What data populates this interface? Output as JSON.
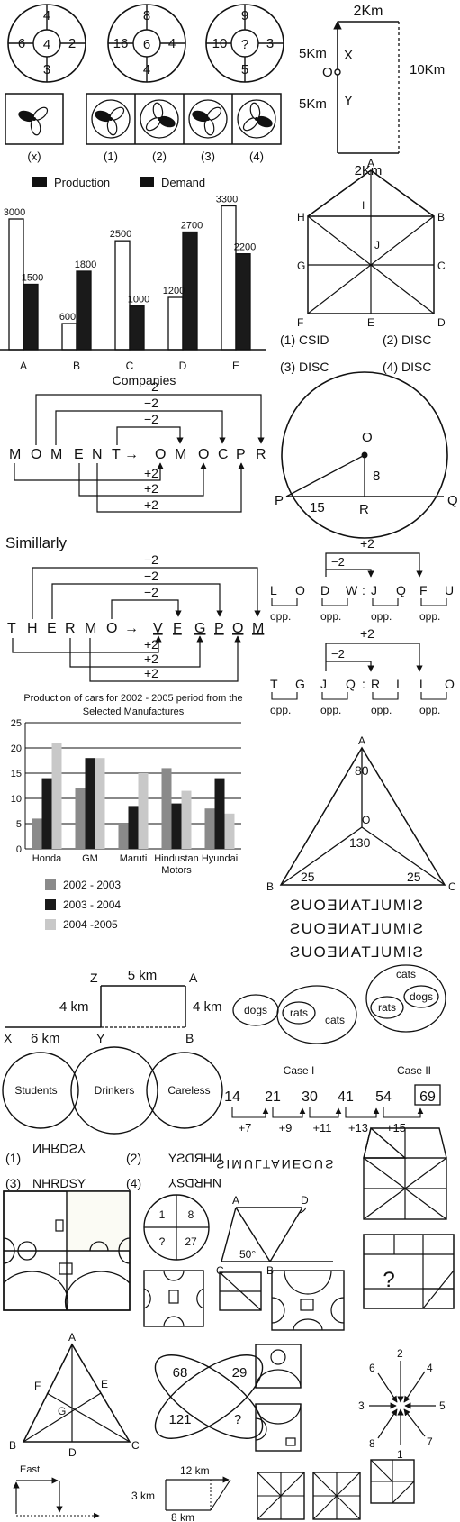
{
  "wheels": [
    {
      "top": "4",
      "left": "6",
      "center": "4",
      "right": "2",
      "bottom": "3"
    },
    {
      "top": "8",
      "left": "16",
      "center": "6",
      "right": "4",
      "bottom": "4"
    },
    {
      "top": "9",
      "left": "10",
      "center": "?",
      "right": "3",
      "bottom": "5"
    }
  ],
  "route1": {
    "top": "2Km",
    "left_upper": "5Km",
    "left_lower": "5Km",
    "origin": "O",
    "x": "X",
    "y": "Y",
    "right": "10Km",
    "bottom": "2Km"
  },
  "fig_labels": {
    "x": "(x)",
    "o1": "(1)",
    "o2": "(2)",
    "o3": "(3)",
    "o4": "(4)"
  },
  "bar_chart": {
    "legend": [
      "Production",
      "Demand"
    ],
    "categories": [
      "A",
      "B",
      "C",
      "D",
      "E"
    ],
    "production": [
      3000,
      600,
      2500,
      1200,
      3300
    ],
    "demand": [
      1500,
      1800,
      1000,
      2700,
      2200
    ],
    "production_labels": [
      "3000",
      "600",
      "2500",
      "1200",
      "3300"
    ],
    "demand_labels": [
      "1500",
      "1800",
      "1000",
      "2700",
      "2200"
    ],
    "xlabel": "Companies"
  },
  "hex_fig": {
    "labels": [
      "A",
      "H",
      "I",
      "B",
      "J",
      "G",
      "C",
      "F",
      "E",
      "D"
    ]
  },
  "disc_options": [
    "(1)  CSID",
    "(2)  DISC",
    "(3)  DISC",
    "(4)  DISC"
  ],
  "moment_code": {
    "source": [
      "M",
      "O",
      "M",
      "E",
      "N",
      "T"
    ],
    "arrow": "→",
    "target": [
      "O",
      "M",
      "O",
      "C",
      "P",
      "R"
    ],
    "minus": [
      "−2",
      "−2",
      "−2"
    ],
    "plus": [
      "+2",
      "+2",
      "+2"
    ]
  },
  "circle_fig": {
    "o": "O",
    "eight": "8",
    "p": "P",
    "fifteen": "15",
    "r": "R",
    "q": "Q"
  },
  "similarly": "Simillarly",
  "thermo_code": {
    "source": [
      "T",
      "H",
      "E",
      "R",
      "M",
      "O"
    ],
    "arrow": "→",
    "target": [
      "V",
      "F",
      "G",
      "P",
      "O",
      "M"
    ],
    "minus": [
      "−2",
      "−2",
      "−2"
    ],
    "plus": [
      "+2",
      "+2",
      "+2"
    ]
  },
  "pair1": {
    "plus": "+2",
    "minus": "−2",
    "letters": [
      "L",
      "O",
      "D",
      "W",
      ":",
      "J",
      "Q",
      "F",
      "U"
    ],
    "opp": [
      "opp.",
      "opp.",
      "opp.",
      "opp."
    ]
  },
  "pair2": {
    "plus": "+2",
    "minus": "−2",
    "letters": [
      "T",
      "G",
      "J",
      "Q",
      ":",
      "R",
      "I",
      "L",
      "O"
    ],
    "opp": [
      "opp.",
      "opp.",
      "opp.",
      "opp."
    ]
  },
  "cars_chart": {
    "title_line1": "Production of cars for 2002 - 2005 period from the",
    "title_line2": "Selected Manufactures",
    "categories": [
      "Honda",
      "GM",
      "Maruti",
      "Hindustan",
      "Hyundai"
    ],
    "categories_line2": [
      "",
      "",
      "",
      "Motors",
      ""
    ],
    "series": [
      {
        "name": "2002 - 2003",
        "values": [
          6,
          12,
          5,
          16,
          8
        ]
      },
      {
        "name": "2003 - 2004",
        "values": [
          14,
          18,
          8.5,
          9,
          14
        ]
      },
      {
        "name": "2004 -2005",
        "values": [
          21,
          18,
          15,
          11.5,
          7
        ]
      }
    ],
    "yticks": [
      "0",
      "5",
      "10",
      "15",
      "20",
      "25"
    ],
    "ylim": [
      0,
      25
    ],
    "colors": [
      "#8a8a8a",
      "#1a1a1a",
      "#c8c8c8"
    ]
  },
  "triangle_fig": {
    "a": "A",
    "eighty": "80",
    "o": "O",
    "onethirty": "130",
    "b": "B",
    "c": "C",
    "b25": "25",
    "c25": "25"
  },
  "mirror_words": [
    "SIMULTANEOUS",
    "SIMULTANEOUS",
    "SIMULTANEOUS"
  ],
  "route2": {
    "z": "Z",
    "a": "A",
    "five": "5 km",
    "four_left": "4 km",
    "four_right": "4 km",
    "x": "X",
    "six": "6 km",
    "y": "Y",
    "b": "B"
  },
  "venn_animals": {
    "case1": [
      "dogs",
      "rats",
      "cats"
    ],
    "case2": [
      "cats",
      "rats",
      "dogs"
    ],
    "case1_label": "Case I",
    "case2_label": "Case II"
  },
  "venn3": [
    "Students",
    "Drinkers",
    "Careless"
  ],
  "series_fig": {
    "numbers": [
      "14",
      "21",
      "30",
      "41",
      "54",
      "69"
    ],
    "diffs": [
      "+7",
      "+9",
      "+11",
      "+13",
      "+15"
    ]
  },
  "nhrdsy_options": [
    "(1)",
    "NHRDSY",
    "(2)",
    "NHRDSY",
    "(3)",
    "NHRDSY",
    "(4)",
    "NHRDSY"
  ],
  "flip_word": "SIMULTANEOUS",
  "quad_circle": [
    "1",
    "8",
    "?",
    "27"
  ],
  "parallelogram": {
    "a": "A",
    "d": "D",
    "c": "C",
    "b": "B",
    "angle": "50°"
  },
  "question_mark": "?",
  "abc_tri": {
    "a": "A",
    "f": "F",
    "e": "E",
    "g": "G",
    "b": "B",
    "d": "D",
    "c": "C"
  },
  "ellipses": [
    "68",
    "29",
    "121",
    "?"
  ],
  "compass": [
    "2",
    "6",
    "4",
    "3",
    "5",
    "8",
    "7",
    "1"
  ],
  "east_fig": {
    "east": "East"
  },
  "trap_fig": {
    "twelve": "12 km",
    "three": "3 km",
    "eight": "8 km"
  }
}
